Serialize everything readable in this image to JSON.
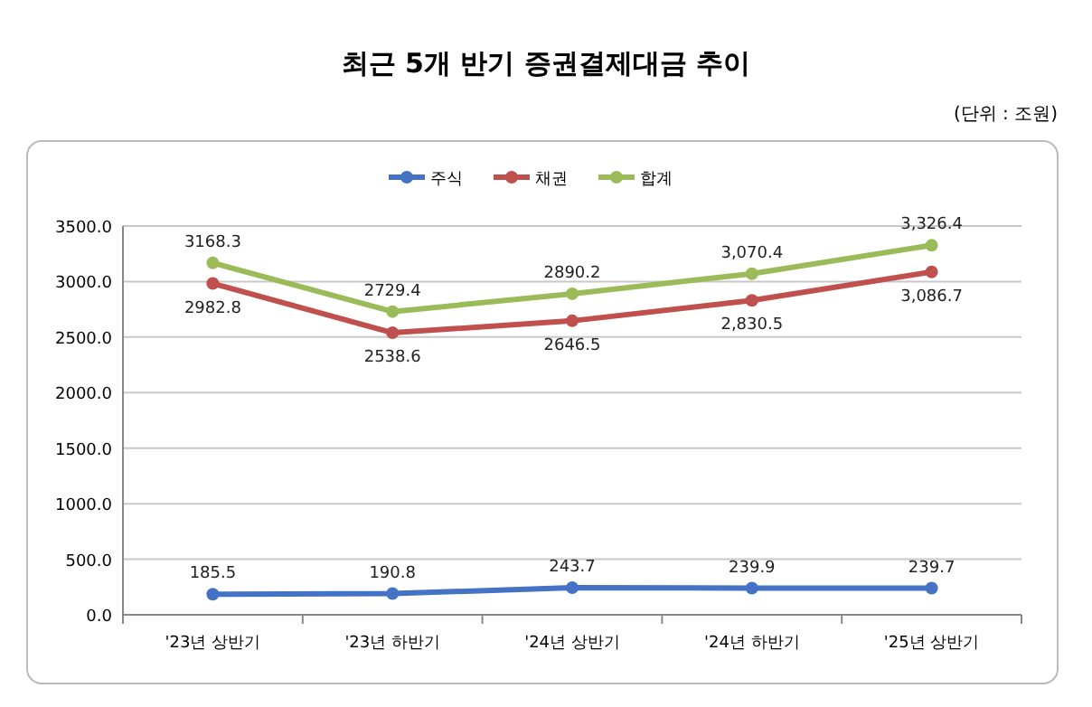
{
  "chart_data": {
    "type": "line",
    "title": "최근 5개 반기 증권결제대금 추이",
    "subtitle": "(단위 : 조원)",
    "categories": [
      "'23년 상반기",
      "'23년 하반기",
      "'24년 상반기",
      "'24년 하반기",
      "'25년 상반기"
    ],
    "series": [
      {
        "name": "주식",
        "color": "#4472c4",
        "values": [
          185.5,
          190.8,
          243.7,
          239.9,
          239.7
        ],
        "value_labels": [
          "185.5",
          "190.8",
          "243.7",
          "239.9",
          "239.7"
        ]
      },
      {
        "name": "채권",
        "color": "#c0504d",
        "values": [
          2982.8,
          2538.6,
          2646.5,
          2830.5,
          3086.7
        ],
        "value_labels": [
          "2982.8",
          "2538.6",
          "2646.5",
          "2,830.5",
          "3,086.7"
        ]
      },
      {
        "name": "합계",
        "color": "#9bbb59",
        "values": [
          3168.3,
          2729.4,
          2890.2,
          3070.4,
          3326.4
        ],
        "value_labels": [
          "3168.3",
          "2729.4",
          "2890.2",
          "3,070.4",
          "3,326.4"
        ]
      }
    ],
    "ylim": [
      0,
      3500
    ],
    "yticks": [
      {
        "value": 0,
        "label": "0.0"
      },
      {
        "value": 500,
        "label": "500.0"
      },
      {
        "value": 1000,
        "label": "1000.0"
      },
      {
        "value": 1500,
        "label": "1500.0"
      },
      {
        "value": 2000,
        "label": "2000.0"
      },
      {
        "value": 2500,
        "label": "2500.0"
      },
      {
        "value": 3000,
        "label": "3000.0"
      },
      {
        "value": 3500,
        "label": "3500.0"
      }
    ],
    "grid": "y",
    "legend": "top",
    "marker": "circle",
    "line_style": "solid"
  }
}
